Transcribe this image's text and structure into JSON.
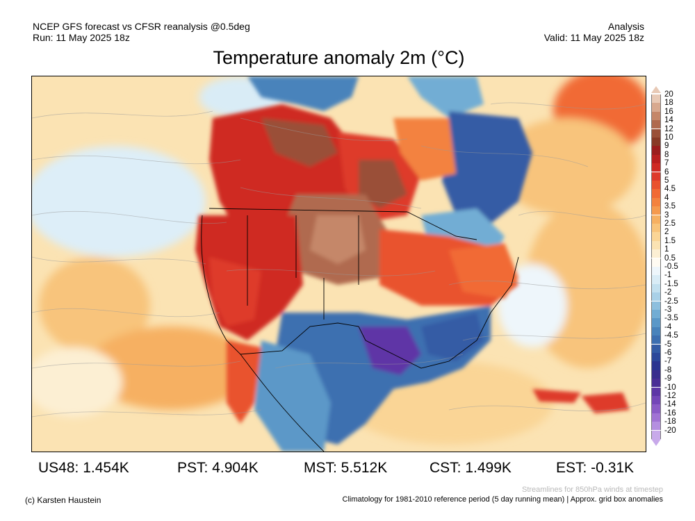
{
  "header": {
    "line1_left": "NCEP GFS forecast vs CFSR reanalysis @0.5deg",
    "line2_left": "Run: 11 May 2025 18z",
    "line1_right": "Analysis",
    "line2_right": "Valid: 11 May 2025 18z"
  },
  "title": "Temperature anomaly 2m (°C)",
  "legend": {
    "labels": [
      "20",
      "18",
      "16",
      "14",
      "12",
      "10",
      "9",
      "8",
      "7",
      "6",
      "5",
      "4.5",
      "4",
      "3.5",
      "3",
      "2.5",
      "2",
      "1.5",
      "1",
      "0.5",
      "-0.5",
      "-1",
      "-1.5",
      "-2",
      "-2.5",
      "-3",
      "-3.5",
      "-4",
      "-4.5",
      "-5",
      "-6",
      "-7",
      "-8",
      "-9",
      "-10",
      "-12",
      "-14",
      "-16",
      "-18",
      "-20"
    ],
    "colors": [
      "#e8c9b5",
      "#d8a98f",
      "#c58769",
      "#b06a4f",
      "#9a5038",
      "#883a26",
      "#9b1d1d",
      "#b91f1f",
      "#cf2a24",
      "#de3a2b",
      "#e9522e",
      "#f16a34",
      "#f3823f",
      "#f59a4e",
      "#f6b062",
      "#f8c47b",
      "#fad596",
      "#fbe3b3",
      "#fcefd3",
      "#fffbf2",
      "#eef6fb",
      "#d9ecf6",
      "#c2e0ef",
      "#a8d0e7",
      "#8dbfde",
      "#72add4",
      "#5b98c8",
      "#4983bb",
      "#3d6fb0",
      "#345ca5",
      "#2c489a",
      "#2b3590",
      "#3a2c8d",
      "#4a2d95",
      "#5e36a6",
      "#7446b8",
      "#8b5bc7",
      "#a173d4",
      "#b58fe0",
      "#c8a9ea"
    ]
  },
  "stats": {
    "us48": "US48: 1.454K",
    "pst": "PST: 4.904K",
    "mst": "MST: 5.512K",
    "cst": "CST: 1.499K",
    "est": "EST: -0.31K"
  },
  "footer": {
    "streamlines_note": "Streamlines for 850hPa winds at timestep",
    "copyright": "(c) Karsten Haustein",
    "climatology": "Climatology for 1981-2010 reference period (5 day running mean) | Approx. grid box anomalies"
  }
}
